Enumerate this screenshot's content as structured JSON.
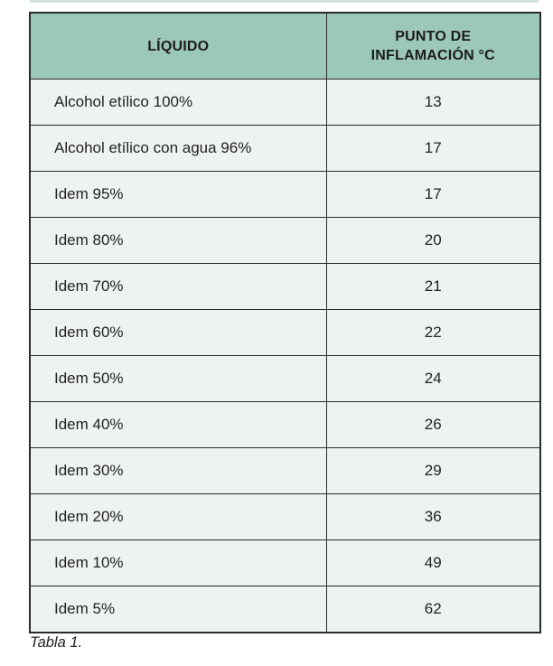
{
  "page": {
    "caption": "Tabla 1.",
    "background": "#ffffff"
  },
  "table": {
    "columns": {
      "liquido_label": "LÍQUIDO",
      "punto_label_line1": "PUNTO DE",
      "punto_label_line2": "INFLAMACIÓN °C"
    },
    "rows": [
      {
        "liquido": "Alcohol etílico 100%",
        "punto_inflamacion": "13"
      },
      {
        "liquido": "Alcohol etílico con agua 96%",
        "punto_inflamacion": "17"
      },
      {
        "liquido": "Idem 95%",
        "punto_inflamacion": "17"
      },
      {
        "liquido": "Idem 80%",
        "punto_inflamacion": "20"
      },
      {
        "liquido": "Idem 70%",
        "punto_inflamacion": "21"
      },
      {
        "liquido": "Idem 60%",
        "punto_inflamacion": "22"
      },
      {
        "liquido": "Idem 50%",
        "punto_inflamacion": "24"
      },
      {
        "liquido": "Idem 40%",
        "punto_inflamacion": "26"
      },
      {
        "liquido": "Idem 30%",
        "punto_inflamacion": "29"
      },
      {
        "liquido": "Idem 20%",
        "punto_inflamacion": "36"
      },
      {
        "liquido": "Idem 10%",
        "punto_inflamacion": "49"
      },
      {
        "liquido": "Idem 5%",
        "punto_inflamacion": "62"
      }
    ],
    "colors": {
      "header_bg": "#9cc8b8",
      "row_bg": "#edf3f0",
      "border": "#2b2b2b",
      "top_strip": "#cfe2da",
      "text": "#1f1f1f"
    }
  }
}
